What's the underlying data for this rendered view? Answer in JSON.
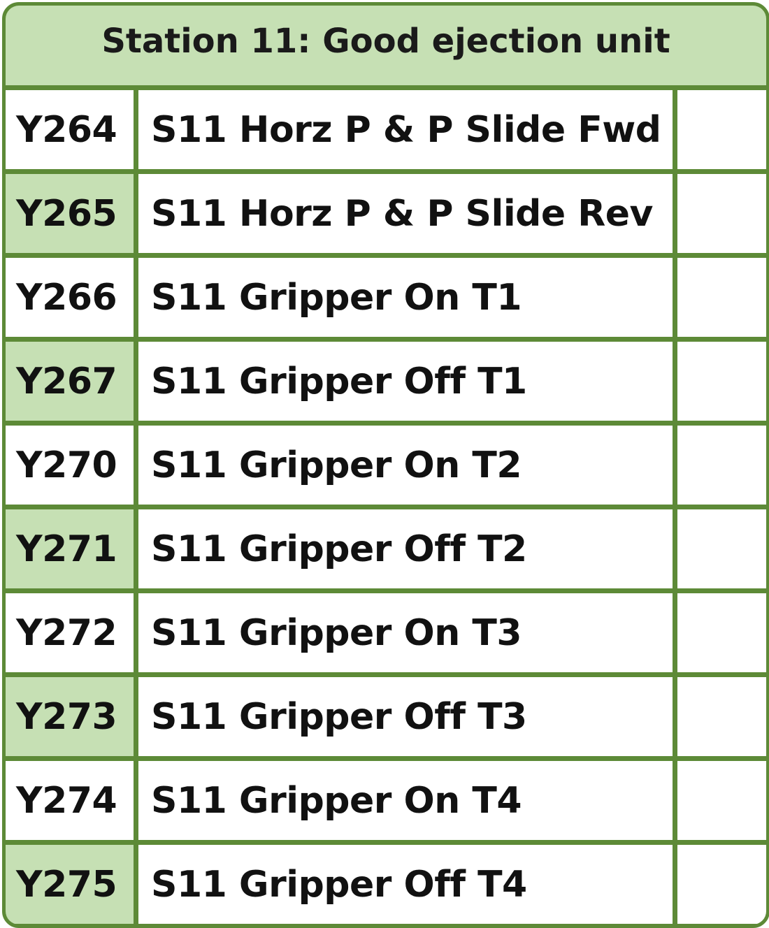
{
  "title": "Station 11: Good ejection unit",
  "colors": {
    "border": "#5d8a37",
    "header_fill": "#c6e0b4",
    "shaded_fill": "#c6e0b4",
    "cell_fill": "#ffffff"
  },
  "rows": [
    {
      "code": "Y264",
      "description": "S11 Horz P & P Slide Fwd",
      "extra": "",
      "shaded": false
    },
    {
      "code": "Y265",
      "description": "S11 Horz P & P Slide Rev",
      "extra": "",
      "shaded": true
    },
    {
      "code": "Y266",
      "description": "S11 Gripper On T1",
      "extra": "",
      "shaded": false
    },
    {
      "code": "Y267",
      "description": "S11 Gripper Off T1",
      "extra": "",
      "shaded": true
    },
    {
      "code": "Y270",
      "description": "S11 Gripper On T2",
      "extra": "",
      "shaded": false
    },
    {
      "code": "Y271",
      "description": "S11 Gripper Off T2",
      "extra": "",
      "shaded": true
    },
    {
      "code": "Y272",
      "description": "S11 Gripper On T3",
      "extra": "",
      "shaded": false
    },
    {
      "code": "Y273",
      "description": "S11 Gripper Off T3",
      "extra": "",
      "shaded": true
    },
    {
      "code": "Y274",
      "description": "S11 Gripper On T4",
      "extra": "",
      "shaded": false
    },
    {
      "code": "Y275",
      "description": "S11 Gripper Off T4",
      "extra": "",
      "shaded": true
    }
  ]
}
